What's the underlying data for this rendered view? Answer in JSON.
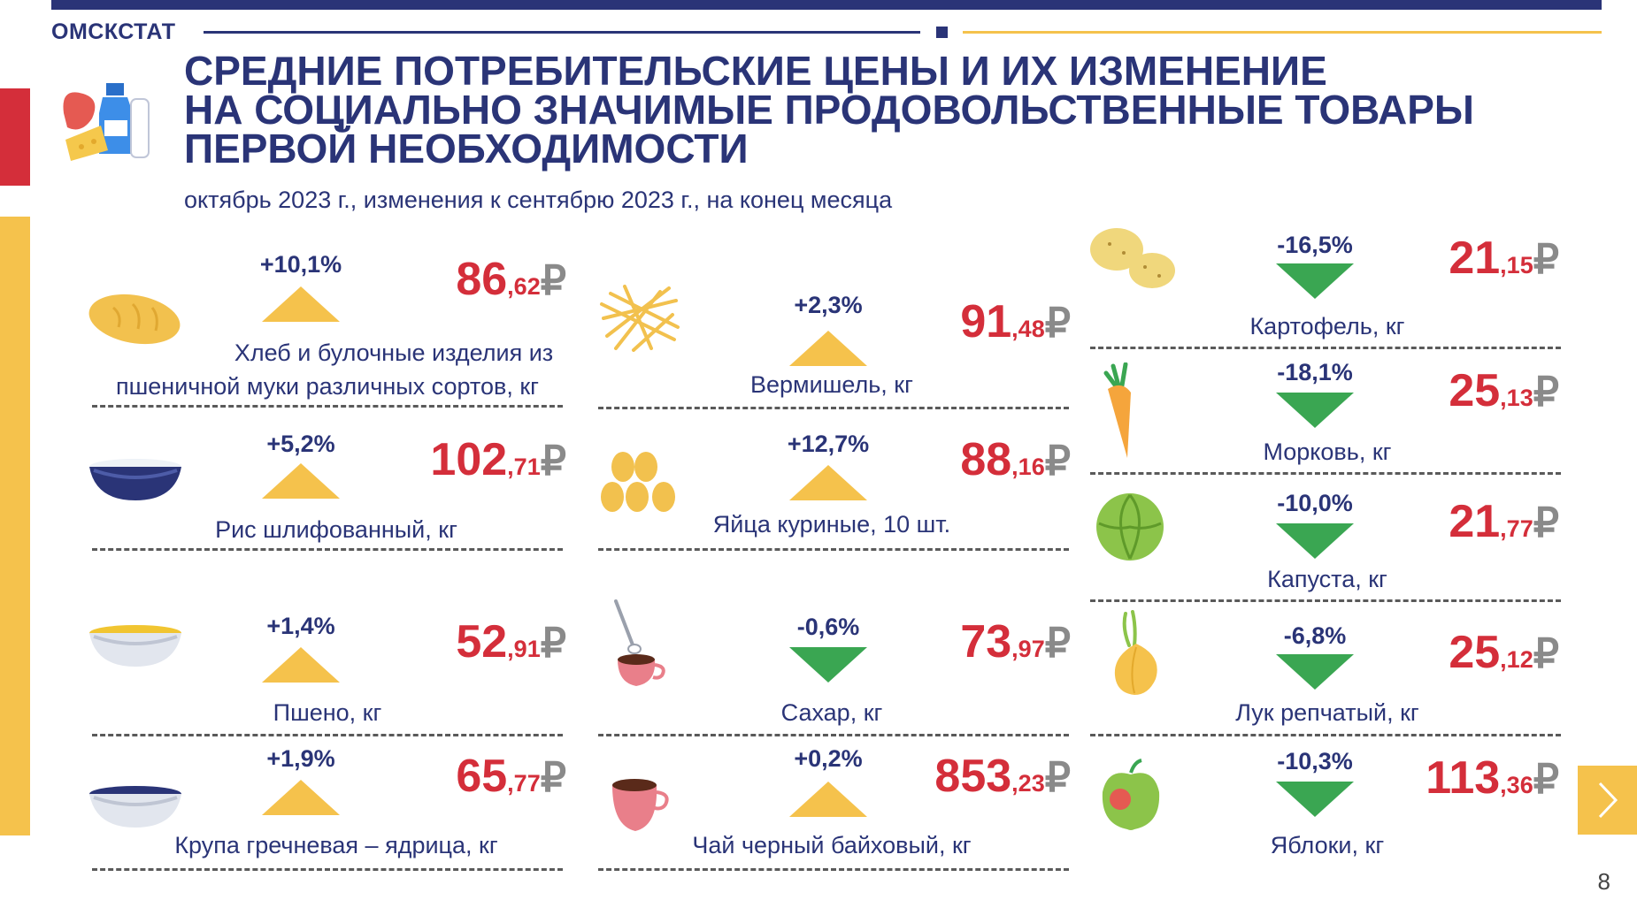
{
  "header": {
    "brand": "ОМСКСТАТ",
    "page_number": "8"
  },
  "title": {
    "line1": "СРЕДНИЕ ПОТРЕБИТЕЛЬСКИЕ ЦЕНЫ И ИХ ИЗМЕНЕНИЕ",
    "line2": "НА СОЦИАЛЬНО ЗНАЧИМЫЕ ПРОДОВОЛЬСТВЕННЫЕ ТОВАРЫ",
    "line3": "ПЕРВОЙ НЕОБХОДИМОСТИ",
    "subtitle": "октябрь 2023 г., изменения к сентябрю 2023 г., на конец месяца"
  },
  "currency": "₽",
  "colors": {
    "primary": "#2a3477",
    "price": "#d42e3a",
    "increase": "#f5c24c",
    "decrease": "#3aa652"
  },
  "items": [
    {
      "label_line1": "Хлеб и булочные изделия из",
      "label_line2": "пшеничной муки различных сортов, кг",
      "change": "+10,1%",
      "direction": "up",
      "price_rub": "86",
      "price_kop": ",62",
      "icon": "bread-icon"
    },
    {
      "label_line1": "Рис шлифованный, кг",
      "label_line2": "",
      "change": "+5,2%",
      "direction": "up",
      "price_rub": "102",
      "price_kop": ",71",
      "icon": "rice-bowl-icon"
    },
    {
      "label_line1": "Пшено, кг",
      "label_line2": "",
      "change": "+1,4%",
      "direction": "up",
      "price_rub": "52",
      "price_kop": ",91",
      "icon": "millet-bowl-icon"
    },
    {
      "label_line1": "Крупа гречневая – ядрица, кг",
      "label_line2": "",
      "change": "+1,9%",
      "direction": "up",
      "price_rub": "65",
      "price_kop": ",77",
      "icon": "buckwheat-bowl-icon"
    },
    {
      "label_line1": "Вермишель, кг",
      "label_line2": "",
      "change": "+2,3%",
      "direction": "up",
      "price_rub": "91",
      "price_kop": ",48",
      "icon": "noodles-icon"
    },
    {
      "label_line1": "Яйца куриные, 10 шт.",
      "label_line2": "",
      "change": "+12,7%",
      "direction": "up",
      "price_rub": "88",
      "price_kop": ",16",
      "icon": "eggs-icon"
    },
    {
      "label_line1": "Сахар, кг",
      "label_line2": "",
      "change": "-0,6%",
      "direction": "down",
      "price_rub": "73",
      "price_kop": ",97",
      "icon": "sugar-cup-icon"
    },
    {
      "label_line1": "Чай черный байховый, кг",
      "label_line2": "",
      "change": "+0,2%",
      "direction": "up",
      "price_rub": "853",
      "price_kop": ",23",
      "icon": "tea-cup-icon"
    },
    {
      "label_line1": "Картофель, кг",
      "label_line2": "",
      "change": "-16,5%",
      "direction": "down",
      "price_rub": "21",
      "price_kop": ",15",
      "icon": "potato-icon"
    },
    {
      "label_line1": "Морковь, кг",
      "label_line2": "",
      "change": "-18,1%",
      "direction": "down",
      "price_rub": "25",
      "price_kop": ",13",
      "icon": "carrot-icon"
    },
    {
      "label_line1": "Капуста, кг",
      "label_line2": "",
      "change": "-10,0%",
      "direction": "down",
      "price_rub": "21",
      "price_kop": ",77",
      "icon": "cabbage-icon"
    },
    {
      "label_line1": "Лук репчатый, кг",
      "label_line2": "",
      "change": "-6,8%",
      "direction": "down",
      "price_rub": "25",
      "price_kop": ",12",
      "icon": "onion-icon"
    },
    {
      "label_line1": "Яблоки, кг",
      "label_line2": "",
      "change": "-10,3%",
      "direction": "down",
      "price_rub": "113",
      "price_kop": ",36",
      "icon": "apple-icon"
    }
  ]
}
